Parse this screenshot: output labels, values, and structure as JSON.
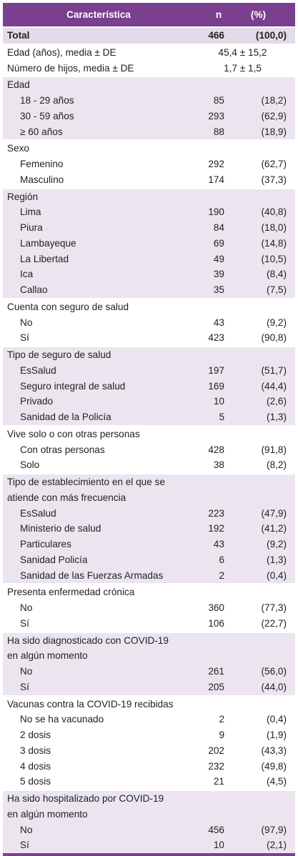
{
  "header": [
    "Característica",
    "n",
    "(%)"
  ],
  "total": [
    "Total",
    "466",
    "(100,0)"
  ],
  "summary": [
    [
      "Edad (años), media ± DE",
      "45,4 ± 15,2"
    ],
    [
      "Número de hijos, media ± DE",
      "1,7 ± 1,5"
    ]
  ],
  "groups": [
    {
      "label": [
        "Edad"
      ],
      "rows": [
        [
          "18 - 29 años",
          "85",
          "(18,2)"
        ],
        [
          "30 - 59 años",
          "293",
          "(62,9)"
        ],
        [
          "≥ 60 años",
          "88",
          "(18,9)"
        ]
      ]
    },
    {
      "label": [
        "Sexo"
      ],
      "rows": [
        [
          "Femenino",
          "292",
          "(62,7)"
        ],
        [
          "Masculino",
          "174",
          "(37,3)"
        ]
      ]
    },
    {
      "label": [
        "Región"
      ],
      "rows": [
        [
          "Lima",
          "190",
          "(40,8)"
        ],
        [
          "Piura",
          "84",
          "(18,0)"
        ],
        [
          "Lambayeque",
          "69",
          "(14,8)"
        ],
        [
          "La Libertad",
          "49",
          "(10,5)"
        ],
        [
          "Ica",
          "39",
          "(8,4)"
        ],
        [
          "Callao",
          "35",
          "(7,5)"
        ]
      ]
    },
    {
      "label": [
        "Cuenta con seguro de salud"
      ],
      "rows": [
        [
          "No",
          "43",
          "(9,2)"
        ],
        [
          "Sí",
          "423",
          "(90,8)"
        ]
      ]
    },
    {
      "label": [
        "Tipo de seguro de salud"
      ],
      "rows": [
        [
          "EsSalud",
          "197",
          "(51,7)"
        ],
        [
          "Seguro integral de salud",
          "169",
          "(44,4)"
        ],
        [
          "Privado",
          "10",
          "(2,6)"
        ],
        [
          "Sanidad de la Policía",
          "5",
          "(1,3)"
        ]
      ]
    },
    {
      "label": [
        "Vive solo o con otras personas"
      ],
      "rows": [
        [
          "Con otras personas",
          "428",
          "(91,8)"
        ],
        [
          "Solo",
          "38",
          "(8,2)"
        ]
      ]
    },
    {
      "label": [
        "Tipo de establecimiento en el que se",
        "atiende con más frecuencia"
      ],
      "rows": [
        [
          "EsSalud",
          "223",
          "(47,9)"
        ],
        [
          "Ministerio de salud",
          "192",
          "(41,2)"
        ],
        [
          "Particulares",
          "43",
          "(9,2)"
        ],
        [
          "Sanidad Policía",
          "6",
          "(1,3)"
        ],
        [
          "Sanidad de las Fuerzas Armadas",
          "2",
          "(0,4)"
        ]
      ]
    },
    {
      "label": [
        "Presenta enfermedad crónica"
      ],
      "rows": [
        [
          "No",
          "360",
          "(77,3)"
        ],
        [
          "Sí",
          "106",
          "(22,7)"
        ]
      ]
    },
    {
      "label": [
        "Ha sido diagnosticado con COVID-19",
        "en algún momento"
      ],
      "rows": [
        [
          "No",
          "261",
          "(56,0)"
        ],
        [
          "Sí",
          "205",
          "(44,0)"
        ]
      ]
    },
    {
      "label": [
        "Vacunas contra la COVID-19 recibidas"
      ],
      "rows": [
        [
          "No se ha vacunado",
          "2",
          "(0,4)"
        ],
        [
          "2 dosis",
          "9",
          "(1,9)"
        ],
        [
          "3 dosis",
          "202",
          "(43,3)"
        ],
        [
          "4 dosis",
          "232",
          "(49,8)"
        ],
        [
          "5 dosis",
          "21",
          "(4,5)"
        ]
      ]
    },
    {
      "label": [
        "Ha sido hospitalizado por COVID-19",
        "en algún momento"
      ],
      "rows": [
        [
          "No",
          "456",
          "(97,9)"
        ],
        [
          "Sí",
          "10",
          "(2,1)"
        ]
      ]
    }
  ]
}
